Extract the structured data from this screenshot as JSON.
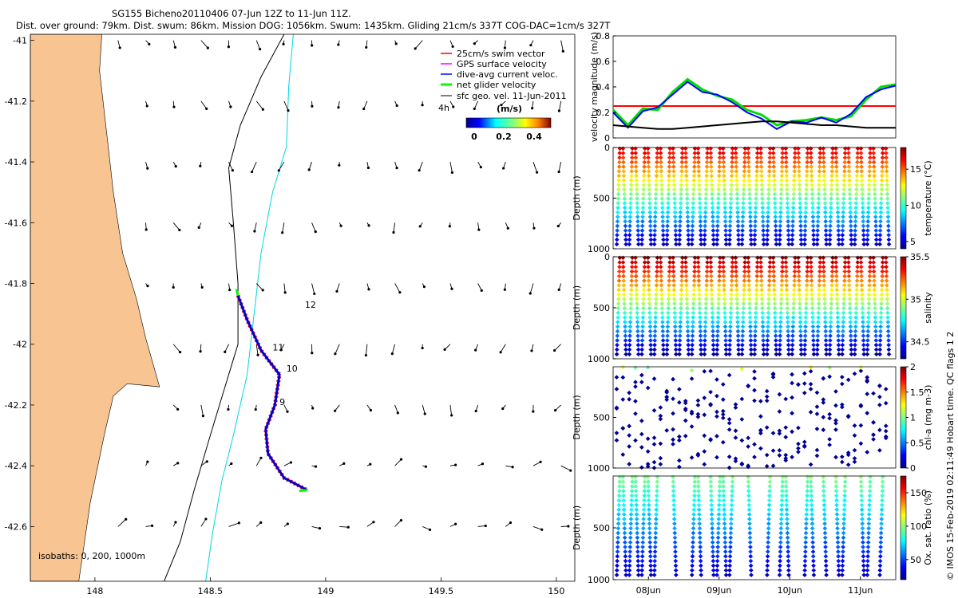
{
  "header": {
    "title_line1": "SG155 Bicheno20110406 07-Jun 12Z to 11-Jun 11Z.",
    "title_line2": "Dist. over ground: 79km. Dist. swum: 86km. Mission DOG: 1056km. Swum: 1435km. Gliding 21cm/s 337T COG-DAC=1cm/s 327T"
  },
  "credit": "© IMOS 15-Feb-2019 02:11:49 Hobart time. QC flags 1 2",
  "colors": {
    "land": "#f7c492",
    "isobath_200": "#000000",
    "isobath_1000": "#00d5e5",
    "track": "#0000cc",
    "swim": "#ff0000",
    "net_velocity": "#00ff00",
    "threshold_line": "#ff0000"
  },
  "chart_data": [
    {
      "id": "map",
      "type": "scatter",
      "title": "",
      "xlabel": "",
      "ylabel": "",
      "xlim": [
        147.72,
        150.08
      ],
      "ylim": [
        -42.78,
        -40.98
      ],
      "x_ticks": [
        "148",
        "148.5",
        "149",
        "149.5",
        "150"
      ],
      "y_ticks": [
        "-41",
        "-41.2",
        "-41.4",
        "-41.6",
        "-41.8",
        "-42",
        "-42.2",
        "-42.4",
        "-42.6"
      ],
      "legend": {
        "position": "top-right",
        "items": [
          {
            "label": "25cm/s swim vector",
            "color": "#ff0000"
          },
          {
            "label": "GPS surface velocity",
            "color": "#ff00ff"
          },
          {
            "label": "dive-avg current veloc.",
            "color": "#0000ff"
          },
          {
            "label": "net glider velocity",
            "color": "#00ff00"
          },
          {
            "label": "sfc geo. vel. 11-Jun-2011",
            "color": "#000000"
          }
        ],
        "scale_label": "4h",
        "colorbar_title": "(m/s)",
        "colorbar_ticks": [
          "0",
          "0.2",
          "0.4"
        ]
      },
      "isobath_note": "isobaths: 0, 200, 1000m",
      "day_labels": [
        {
          "label": "12",
          "lon": 148.91,
          "lat": -41.88
        },
        {
          "label": "11",
          "lon": 148.77,
          "lat": -42.02
        },
        {
          "label": "10",
          "lon": 148.83,
          "lat": -42.09
        },
        {
          "label": "9",
          "lon": 148.8,
          "lat": -42.2
        }
      ],
      "track": [
        {
          "lon": 148.62,
          "lat": -41.84
        },
        {
          "lon": 148.66,
          "lat": -41.92
        },
        {
          "lon": 148.72,
          "lat": -42.02
        },
        {
          "lon": 148.8,
          "lat": -42.1
        },
        {
          "lon": 148.78,
          "lat": -42.2
        },
        {
          "lon": 148.74,
          "lat": -42.28
        },
        {
          "lon": 148.75,
          "lat": -42.36
        },
        {
          "lon": 148.82,
          "lat": -42.44
        },
        {
          "lon": 148.92,
          "lat": -42.48
        }
      ],
      "isobath_200m": [
        {
          "lon": 148.82,
          "lat": -40.98
        },
        {
          "lon": 148.72,
          "lat": -41.12
        },
        {
          "lon": 148.63,
          "lat": -41.28
        },
        {
          "lon": 148.58,
          "lat": -41.42
        },
        {
          "lon": 148.6,
          "lat": -41.6
        },
        {
          "lon": 148.62,
          "lat": -41.8
        },
        {
          "lon": 148.62,
          "lat": -42.0
        },
        {
          "lon": 148.56,
          "lat": -42.15
        },
        {
          "lon": 148.5,
          "lat": -42.3
        },
        {
          "lon": 148.43,
          "lat": -42.48
        },
        {
          "lon": 148.37,
          "lat": -42.65
        },
        {
          "lon": 148.3,
          "lat": -42.78
        }
      ],
      "isobath_1000m": [
        {
          "lon": 148.86,
          "lat": -40.98
        },
        {
          "lon": 148.84,
          "lat": -41.15
        },
        {
          "lon": 148.83,
          "lat": -41.35
        },
        {
          "lon": 148.77,
          "lat": -41.5
        },
        {
          "lon": 148.72,
          "lat": -41.7
        },
        {
          "lon": 148.69,
          "lat": -41.9
        },
        {
          "lon": 148.66,
          "lat": -42.1
        },
        {
          "lon": 148.6,
          "lat": -42.3
        },
        {
          "lon": 148.55,
          "lat": -42.45
        },
        {
          "lon": 148.51,
          "lat": -42.62
        },
        {
          "lon": 148.48,
          "lat": -42.78
        }
      ],
      "coastline": [
        {
          "lon": 147.72,
          "lat": -40.98
        },
        {
          "lon": 148.03,
          "lat": -40.98
        },
        {
          "lon": 148.02,
          "lat": -41.1
        },
        {
          "lon": 148.05,
          "lat": -41.3
        },
        {
          "lon": 148.08,
          "lat": -41.5
        },
        {
          "lon": 148.12,
          "lat": -41.7
        },
        {
          "lon": 148.18,
          "lat": -41.85
        },
        {
          "lon": 148.22,
          "lat": -41.98
        },
        {
          "lon": 148.25,
          "lat": -42.06
        },
        {
          "lon": 148.28,
          "lat": -42.14
        },
        {
          "lon": 148.14,
          "lat": -42.13
        },
        {
          "lon": 148.08,
          "lat": -42.17
        },
        {
          "lon": 148.04,
          "lat": -42.3
        },
        {
          "lon": 147.98,
          "lat": -42.52
        },
        {
          "lon": 147.93,
          "lat": -42.78
        },
        {
          "lon": 147.72,
          "lat": -42.78
        }
      ],
      "current_vectors_note": "sfc geo. vel. arrows on a regular grid"
    },
    {
      "id": "velocity",
      "type": "line",
      "title": "",
      "ylabel": "velocity magnitude (m/s)",
      "xlabel": "",
      "ylim": [
        0,
        0.8
      ],
      "y_ticks": [
        "0",
        "0.2",
        "0.4",
        "0.6",
        "0.8"
      ],
      "x_range_days": [
        7.5,
        11.5
      ],
      "threshold": 0.25,
      "series": [
        {
          "color": "#00dd00",
          "values": [
            0.22,
            0.1,
            0.23,
            0.22,
            0.36,
            0.46,
            0.38,
            0.33,
            0.3,
            0.22,
            0.18,
            0.1,
            0.13,
            0.14,
            0.16,
            0.14,
            0.17,
            0.3,
            0.4,
            0.42
          ]
        },
        {
          "color": "#0000ff",
          "values": [
            0.2,
            0.08,
            0.21,
            0.24,
            0.34,
            0.44,
            0.36,
            0.34,
            0.28,
            0.2,
            0.15,
            0.07,
            0.13,
            0.12,
            0.16,
            0.12,
            0.19,
            0.32,
            0.38,
            0.41
          ]
        },
        {
          "color": "#000000",
          "values": [
            0.1,
            0.09,
            0.08,
            0.07,
            0.07,
            0.08,
            0.09,
            0.1,
            0.11,
            0.12,
            0.13,
            0.13,
            0.12,
            0.11,
            0.1,
            0.1,
            0.09,
            0.08,
            0.08,
            0.08
          ]
        }
      ]
    },
    {
      "id": "temperature",
      "type": "scatter",
      "ylabel": "Depth (m)",
      "colorbar_label": "temperature (°C)",
      "ylim": [
        1000,
        0
      ],
      "y_ticks": [
        "0",
        "500",
        "1000"
      ],
      "colorbar_ticks": [
        "5",
        "10",
        "15"
      ],
      "crange": [
        4,
        18
      ]
    },
    {
      "id": "salinity",
      "type": "scatter",
      "ylabel": "Depth (m)",
      "colorbar_label": "salinity",
      "ylim": [
        1000,
        0
      ],
      "y_ticks": [
        "0",
        "500",
        "1000"
      ],
      "colorbar_ticks": [
        "34.5",
        "35",
        "35.5"
      ],
      "crange": [
        34.3,
        35.5
      ]
    },
    {
      "id": "chla",
      "type": "scatter",
      "ylabel": "Depth (m)",
      "colorbar_label": "chl-a (mg m-3)",
      "ylim": [
        1000,
        0
      ],
      "y_ticks": [
        "500",
        "1000"
      ],
      "colorbar_ticks": [
        "0",
        "0.5",
        "1",
        "1.5",
        "2"
      ],
      "crange": [
        0,
        2
      ]
    },
    {
      "id": "oxygen",
      "type": "scatter",
      "ylabel": "Depth (m)",
      "colorbar_label": "Ox. sat. ratio (%)",
      "ylim": [
        1000,
        0
      ],
      "y_ticks": [
        "500",
        "1000"
      ],
      "colorbar_ticks": [
        "50",
        "100",
        "150"
      ],
      "crange": [
        20,
        175
      ],
      "x_ticks": [
        "08Jun",
        "09Jun",
        "10Jun",
        "11Jun"
      ]
    }
  ]
}
